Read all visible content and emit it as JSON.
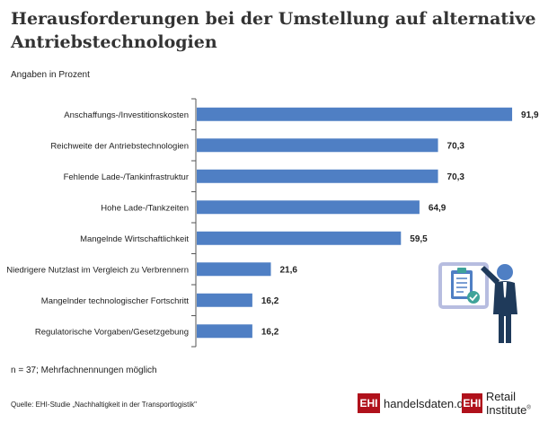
{
  "header": {
    "title": "Herausforderungen bei der Umstellung auf alternative Antriebstechnologien",
    "subtitle": "Angaben in Prozent"
  },
  "footer": {
    "note": "n = 37; Mehrfachnennungen möglich",
    "source": "Quelle: EHI-Studie „Nachhaltigkeit in der Transportlogistik\"",
    "logos": [
      {
        "badge": "EHI",
        "text": "handelsdaten.de"
      },
      {
        "badge": "EHI",
        "text": "Retail Institute",
        "mark": "®"
      }
    ]
  },
  "illustration": {
    "icon": "presenter-clipboard-icon"
  },
  "colors": {
    "bar": "#4f7fc4",
    "axis": "#555555",
    "brand": "#b0111b"
  },
  "chart_data": {
    "type": "bar",
    "orientation": "horizontal",
    "title": "Herausforderungen bei der Umstellung auf alternative Antriebstechnologien",
    "subtitle": "Angaben in Prozent",
    "xlabel": "",
    "ylabel": "",
    "xlim": [
      0,
      100
    ],
    "grid": false,
    "categories": [
      "Anschaffungs-/Investitionskosten",
      "Reichweite der Antriebstechnologien",
      "Fehlende Lade-/Tankinfrastruktur",
      "Hohe Lade-/Tankzeiten",
      "Mangelnde Wirtschaftlichkeit",
      "Niedrigere Nutzlast im Vergleich zu Verbrennern",
      "Mangelnder technologischer Fortschritt",
      "Regulatorische Vorgaben/Gesetzgebung"
    ],
    "values": [
      91.9,
      70.3,
      70.3,
      64.9,
      59.5,
      21.6,
      16.2,
      16.2
    ],
    "value_labels": [
      "91,9",
      "70,3",
      "70,3",
      "64,9",
      "59,5",
      "21,6",
      "16,2",
      "16,2"
    ]
  }
}
